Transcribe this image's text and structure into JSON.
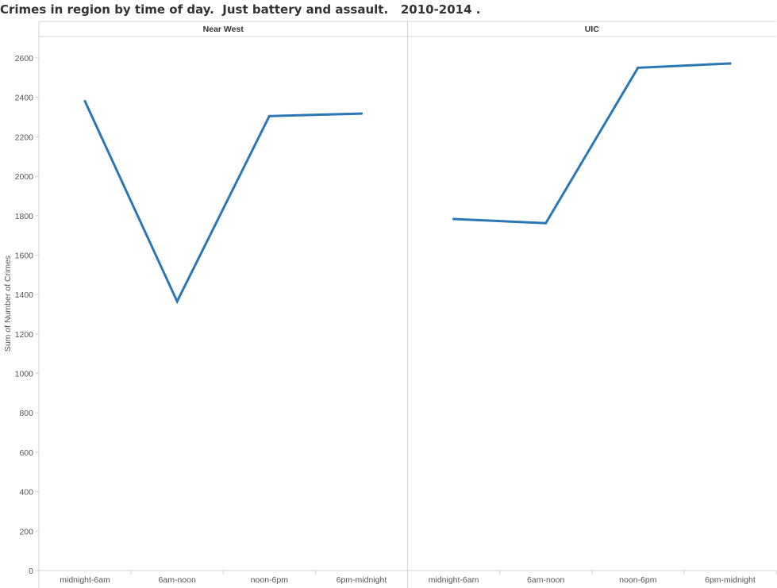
{
  "title": "Crimes in region by time of day.  Just battery and assault.   2010-2014 .",
  "chart_data": {
    "type": "line",
    "title": "Crimes in region by time of day.  Just battery and assault.   2010-2014 .",
    "ylabel": "Sum of Number of Crimes",
    "xlabel": "",
    "ylim": [
      0,
      2700
    ],
    "yticks": [
      0,
      200,
      400,
      600,
      800,
      1000,
      1200,
      1400,
      1600,
      1800,
      2000,
      2200,
      2400,
      2600
    ],
    "categories": [
      "midnight-6am",
      "6am-noon",
      "noon-6pm",
      "6pm-midnight"
    ],
    "grid": false,
    "color": "#2a77b4",
    "panels": [
      {
        "name": "Near West",
        "values": [
          2380,
          1365,
          2305,
          2318
        ]
      },
      {
        "name": "UIC",
        "values": [
          1783,
          1762,
          2550,
          2572
        ]
      }
    ]
  }
}
